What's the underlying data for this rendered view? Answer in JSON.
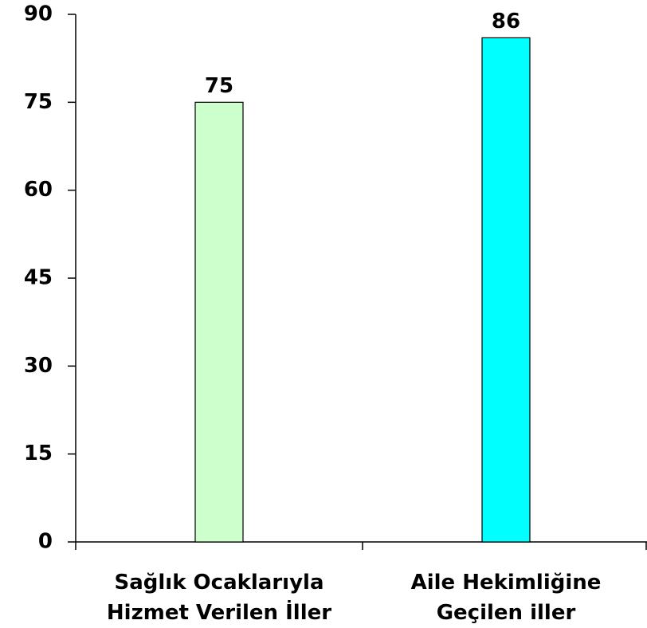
{
  "chart_data": {
    "type": "bar",
    "categories": [
      "Sağlık Ocaklarıyla\nHizmet Verilen İller",
      "Aile Hekimliğine\nGeçilen iller"
    ],
    "values": [
      75,
      86
    ],
    "colors": [
      "#ccffcc",
      "#00ffff"
    ],
    "ylim": [
      0,
      90
    ],
    "yticks": [
      0,
      15,
      30,
      45,
      60,
      75,
      90
    ],
    "grid": false
  }
}
